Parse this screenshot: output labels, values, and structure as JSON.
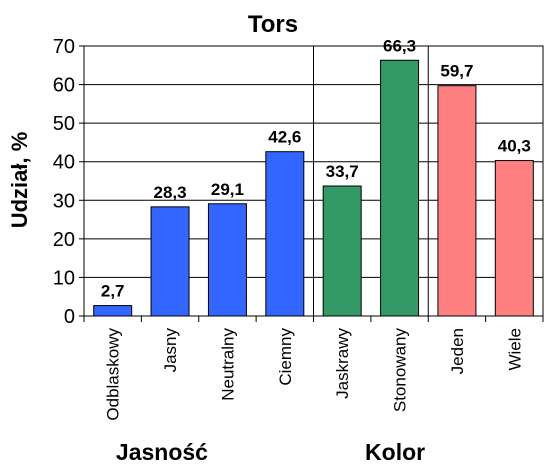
{
  "chart_data": {
    "type": "bar",
    "title": "Tors",
    "ylabel": "Udział, %",
    "xlabel": "",
    "ylim": [
      0,
      70
    ],
    "yticks": [
      0,
      10,
      20,
      30,
      40,
      50,
      60,
      70
    ],
    "grid": true,
    "categories": [
      "Odblaskowy",
      "Jasny",
      "Neutralny",
      "Ciemny",
      "Jaskrawy",
      "Stonowany",
      "Jeden",
      "Wiele"
    ],
    "values": [
      2.7,
      28.3,
      29.1,
      42.6,
      33.7,
      66.3,
      59.7,
      40.3
    ],
    "data_labels": [
      "2,7",
      "28,3",
      "29,1",
      "42,6",
      "33,7",
      "66,3",
      "59,7",
      "40,3"
    ],
    "groups": [
      {
        "label": "Jasność",
        "count": 4,
        "color": "#3366ff"
      },
      {
        "label": "Kolor",
        "count": 2,
        "color": "#339966"
      },
      {
        "label": "",
        "count": 2,
        "color": "#ff8080"
      }
    ]
  }
}
